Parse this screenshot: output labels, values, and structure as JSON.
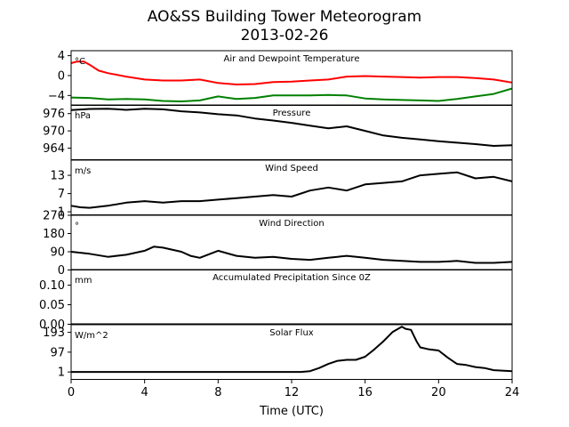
{
  "figure": {
    "title_line1": "AO&SS Building Tower Meteorogram",
    "title_line2": "2013-02-26",
    "xlabel": "Time (UTC)"
  },
  "chart_data": {
    "type": "line",
    "x_range": [
      0,
      24
    ],
    "x_ticks": [
      0,
      4,
      8,
      12,
      16,
      20,
      24
    ],
    "panels": [
      {
        "title": "Air and Dewpoint Temperature",
        "unit": "°C",
        "ylim": [
          -6,
          5
        ],
        "yticks": [
          4,
          0,
          -4
        ],
        "ytick_labels": [
          "4",
          "0",
          "−4"
        ],
        "series": [
          {
            "color": "#ff0000",
            "x": [
              0,
              0.3,
              0.7,
              1.0,
              1.5,
              2,
              3,
              4,
              5,
              6,
              7,
              8,
              9,
              10,
              11,
              12,
              13,
              14,
              15,
              16,
              17,
              18,
              19,
              20,
              21,
              22,
              23,
              24
            ],
            "y": [
              2.5,
              2.8,
              2.8,
              2.2,
              1.0,
              0.5,
              -0.2,
              -0.8,
              -1.0,
              -1.0,
              -0.8,
              -1.5,
              -1.8,
              -1.7,
              -1.3,
              -1.2,
              -1.0,
              -0.8,
              -0.2,
              -0.1,
              -0.2,
              -0.3,
              -0.4,
              -0.3,
              -0.3,
              -0.5,
              -0.8,
              -1.4
            ]
          },
          {
            "color": "#008000",
            "x": [
              0,
              1,
              2,
              3,
              4,
              5,
              6,
              7,
              8,
              9,
              10,
              11,
              12,
              13,
              14,
              15,
              16,
              17,
              18,
              19,
              20,
              21,
              22,
              23,
              24
            ],
            "y": [
              -4.4,
              -4.5,
              -4.8,
              -4.7,
              -4.8,
              -5.1,
              -5.2,
              -5.0,
              -4.2,
              -4.7,
              -4.5,
              -4.0,
              -4.0,
              -4.0,
              -3.9,
              -4.0,
              -4.6,
              -4.8,
              -4.9,
              -5.0,
              -5.1,
              -4.7,
              -4.2,
              -3.7,
              -2.6
            ]
          }
        ]
      },
      {
        "title": "Pressure",
        "unit": "hPa",
        "ylim": [
          960,
          979
        ],
        "yticks": [
          976,
          970,
          964
        ],
        "ytick_labels": [
          "976",
          "970",
          "964"
        ],
        "series": [
          {
            "color": "#000000",
            "x": [
              0,
              1,
              2,
              3,
              4,
              5,
              6,
              7,
              8,
              9,
              10,
              11,
              12,
              13,
              14,
              15,
              16,
              17,
              18,
              19,
              20,
              21,
              22,
              23,
              24
            ],
            "y": [
              977.2,
              977.6,
              977.7,
              977.3,
              977.7,
              977.5,
              976.8,
              976.4,
              975.8,
              975.4,
              974.3,
              973.6,
              972.8,
              971.8,
              970.9,
              971.6,
              970.0,
              968.4,
              967.6,
              967.0,
              966.4,
              965.9,
              965.4,
              964.8,
              965.0
            ]
          }
        ]
      },
      {
        "title": "Wind Speed",
        "unit": "m/s",
        "ylim": [
          0,
          18
        ],
        "yticks": [
          13,
          7,
          1
        ],
        "ytick_labels": [
          "13",
          "7",
          "1"
        ],
        "series": [
          {
            "color": "#000000",
            "x": [
              0,
              0.5,
              1,
              2,
              3,
              4,
              5,
              6,
              7,
              8,
              9,
              10,
              11,
              12,
              13,
              14,
              15,
              16,
              17,
              18,
              19,
              20,
              21,
              22,
              23,
              24
            ],
            "y": [
              3,
              2.5,
              2.3,
              3,
              4,
              4.5,
              4,
              4.5,
              4.5,
              5,
              5.5,
              6,
              6.5,
              6,
              8,
              9,
              8,
              10,
              10.5,
              11,
              13,
              13.5,
              14,
              12,
              12.5,
              11
            ]
          }
        ]
      },
      {
        "title": "Wind Direction",
        "unit": "°",
        "ylim": [
          0,
          270
        ],
        "yticks": [
          270,
          180,
          90,
          0
        ],
        "ytick_labels": [
          "270",
          "180",
          "90",
          "0"
        ],
        "series": [
          {
            "color": "#000000",
            "x": [
              0,
              1,
              2,
              3,
              4,
              4.5,
              5,
              6,
              6.5,
              7,
              8,
              9,
              10,
              11,
              12,
              13,
              14,
              15,
              16,
              17,
              18,
              19,
              20,
              21,
              22,
              23,
              24
            ],
            "y": [
              90,
              80,
              65,
              75,
              95,
              115,
              110,
              90,
              70,
              60,
              95,
              70,
              60,
              65,
              55,
              50,
              60,
              70,
              60,
              50,
              45,
              40,
              40,
              45,
              35,
              35,
              40
            ]
          }
        ]
      },
      {
        "title": "Accumulated Precipitation Since 0Z",
        "unit": "mm",
        "ylim": [
          0,
          0.14
        ],
        "yticks": [
          0.1,
          0.05,
          0.0
        ],
        "ytick_labels": [
          "0.10",
          "0.05",
          "0.00"
        ],
        "series": [
          {
            "color": "#000000",
            "x": [
              0,
              24
            ],
            "y": [
              0,
              0
            ]
          }
        ]
      },
      {
        "title": "Solar Flux",
        "unit": "W/m^2",
        "ylim": [
          -35,
          230
        ],
        "yticks": [
          193,
          97,
          1
        ],
        "ytick_labels": [
          "193",
          "97",
          "1"
        ],
        "series": [
          {
            "color": "#000000",
            "x": [
              0,
              12.5,
              13,
              13.5,
              14,
              14.5,
              15,
              15.5,
              16,
              16.5,
              17,
              17.5,
              18,
              18.2,
              18.5,
              18.8,
              19,
              19.5,
              20,
              20.5,
              21,
              21.5,
              22,
              22.5,
              23,
              24
            ],
            "y": [
              1,
              1,
              5,
              20,
              40,
              55,
              60,
              60,
              75,
              110,
              150,
              195,
              220,
              210,
              205,
              150,
              120,
              110,
              105,
              70,
              40,
              35,
              25,
              20,
              10,
              5
            ]
          }
        ]
      }
    ]
  }
}
